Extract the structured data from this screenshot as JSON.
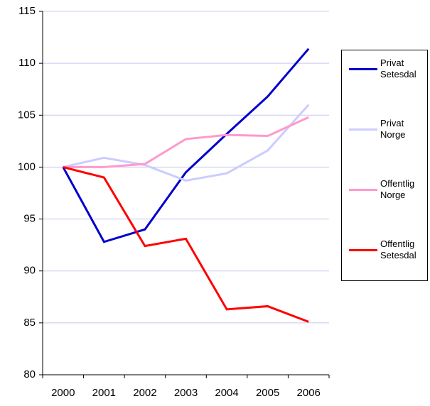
{
  "chart_data": {
    "type": "line",
    "categories": [
      "2000",
      "2001",
      "2002",
      "2003",
      "2004",
      "2005",
      "2006"
    ],
    "series": [
      {
        "name": "Privat Setesdal",
        "color": "#0000cc",
        "values": [
          100,
          92.8,
          94.0,
          99.5,
          103.2,
          106.8,
          111.4
        ]
      },
      {
        "name": "Privat Norge",
        "color": "#ccccff",
        "values": [
          100,
          100.9,
          100.2,
          98.7,
          99.4,
          101.6,
          106.0
        ]
      },
      {
        "name": "Offentlig Norge",
        "color": "#ff99cc",
        "values": [
          100,
          100.0,
          100.3,
          102.7,
          103.1,
          103.0,
          104.8
        ]
      },
      {
        "name": "Offentlig Setesdal",
        "color": "#ff0000",
        "values": [
          100,
          99.0,
          92.4,
          93.1,
          86.3,
          86.6,
          85.1
        ]
      }
    ],
    "ylim": [
      80,
      115
    ],
    "yticks": [
      80,
      85,
      90,
      95,
      100,
      105,
      110,
      115
    ],
    "grid": true,
    "legend": "right"
  }
}
